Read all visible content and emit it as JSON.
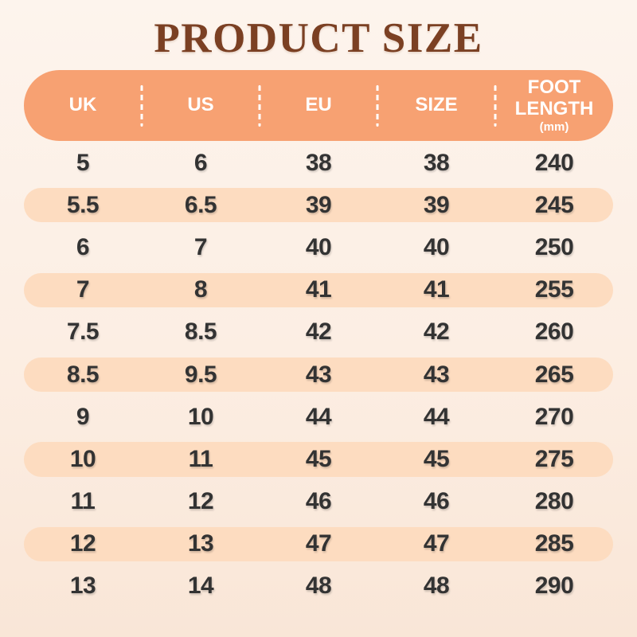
{
  "title": "PRODUCT SIZE",
  "table": {
    "columns": [
      {
        "label": "UK"
      },
      {
        "label": "US"
      },
      {
        "label": "EU"
      },
      {
        "label": "SIZE"
      },
      {
        "label": "FOOT LENGTH",
        "sub": "(mm)"
      }
    ],
    "rows": [
      [
        "5",
        "6",
        "38",
        "38",
        "240"
      ],
      [
        "5.5",
        "6.5",
        "39",
        "39",
        "245"
      ],
      [
        "6",
        "7",
        "40",
        "40",
        "250"
      ],
      [
        "7",
        "8",
        "41",
        "41",
        "255"
      ],
      [
        "7.5",
        "8.5",
        "42",
        "42",
        "260"
      ],
      [
        "8.5",
        "9.5",
        "43",
        "43",
        "265"
      ],
      [
        "9",
        "10",
        "44",
        "44",
        "270"
      ],
      [
        "10",
        "11",
        "45",
        "45",
        "275"
      ],
      [
        "11",
        "12",
        "46",
        "46",
        "280"
      ],
      [
        "12",
        "13",
        "47",
        "47",
        "285"
      ],
      [
        "13",
        "14",
        "48",
        "48",
        "290"
      ]
    ]
  },
  "colors": {
    "background_top": "#FDF4ED",
    "background_bottom": "#F9E6D7",
    "header_bg": "#F7A172",
    "header_text": "#FFFFFF",
    "row_highlight": "#FDDCC0",
    "cell_text": "#333333",
    "title_text": "#7B4023"
  },
  "chart_data": {
    "type": "table",
    "title": "PRODUCT SIZE",
    "columns": [
      "UK",
      "US",
      "EU",
      "SIZE",
      "FOOT LENGTH (mm)"
    ],
    "rows": [
      [
        "5",
        "6",
        "38",
        "38",
        "240"
      ],
      [
        "5.5",
        "6.5",
        "39",
        "39",
        "245"
      ],
      [
        "6",
        "7",
        "40",
        "40",
        "250"
      ],
      [
        "7",
        "8",
        "41",
        "41",
        "255"
      ],
      [
        "7.5",
        "8.5",
        "42",
        "42",
        "260"
      ],
      [
        "8.5",
        "9.5",
        "43",
        "43",
        "265"
      ],
      [
        "9",
        "10",
        "44",
        "44",
        "270"
      ],
      [
        "10",
        "11",
        "45",
        "45",
        "275"
      ],
      [
        "11",
        "12",
        "46",
        "46",
        "280"
      ],
      [
        "12",
        "13",
        "47",
        "47",
        "285"
      ],
      [
        "13",
        "14",
        "48",
        "48",
        "290"
      ]
    ]
  }
}
